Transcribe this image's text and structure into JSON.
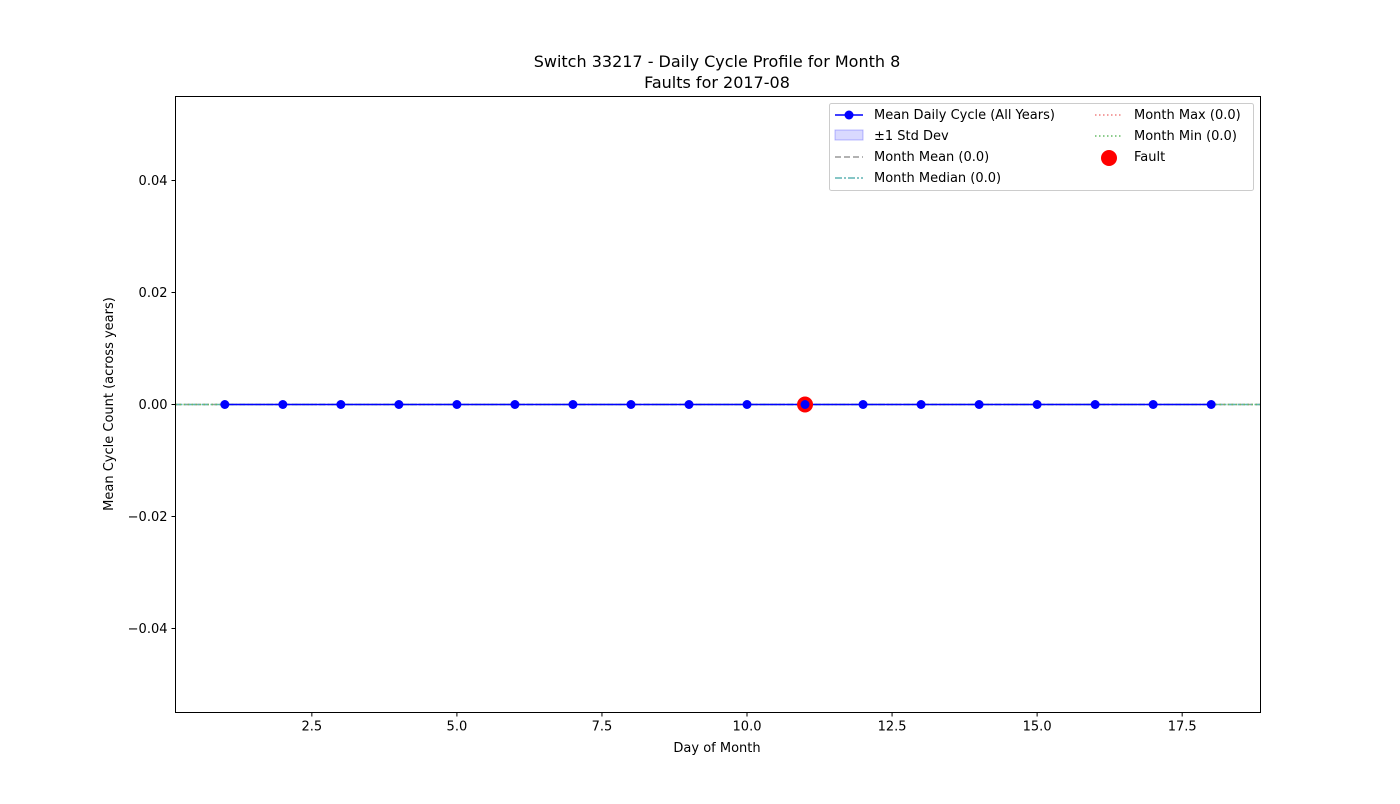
{
  "chart_data": {
    "type": "line",
    "title": "Switch 33217 - Daily Cycle Profile for Month 8",
    "subtitle": "Faults for 2017-08",
    "xlabel": "Day of Month",
    "ylabel": "Mean Cycle Count (across years)",
    "xlim": [
      0.15,
      18.85
    ],
    "ylim": [
      -0.055,
      0.055
    ],
    "xticks": [
      2.5,
      5.0,
      7.5,
      10.0,
      12.5,
      15.0,
      17.5
    ],
    "xtick_labels": [
      "2.5",
      "5.0",
      "7.5",
      "10.0",
      "12.5",
      "15.0",
      "17.5"
    ],
    "yticks": [
      -0.04,
      -0.02,
      0.0,
      0.02,
      0.04
    ],
    "ytick_labels": [
      "−0.04",
      "−0.02",
      "0.00",
      "0.02",
      "0.04"
    ],
    "grid": false,
    "legend_position": "top-right",
    "x": [
      1,
      2,
      3,
      4,
      5,
      6,
      7,
      8,
      9,
      10,
      11,
      12,
      13,
      14,
      15,
      16,
      17,
      18
    ],
    "series": [
      {
        "name": "Mean Daily Cycle (All Years)",
        "values": [
          0,
          0,
          0,
          0,
          0,
          0,
          0,
          0,
          0,
          0,
          0,
          0,
          0,
          0,
          0,
          0,
          0,
          0
        ],
        "color": "#0000ff"
      }
    ],
    "std_band": {
      "name": "±1 Std Dev",
      "lower": 0,
      "upper": 0,
      "color": "#ccccff"
    },
    "reference_lines": [
      {
        "name": "Month Mean (0.0)",
        "value": 0.0,
        "color": "#999999",
        "style": "dashed"
      },
      {
        "name": "Month Median (0.0)",
        "value": 0.0,
        "color": "#5fb3b3",
        "style": "dashdot"
      },
      {
        "name": "Month Max (0.0)",
        "value": 0.0,
        "color": "#f08080",
        "style": "dotted"
      },
      {
        "name": "Month Min (0.0)",
        "value": 0.0,
        "color": "#66bb66",
        "style": "dotted"
      }
    ],
    "faults": {
      "name": "Fault",
      "x": [
        11
      ],
      "y": [
        0
      ],
      "color": "#ff0000"
    },
    "legend_entries": [
      "Mean Daily Cycle (All Years)",
      "±1 Std Dev",
      "Month Mean (0.0)",
      "Month Median (0.0)",
      "Month Max (0.0)",
      "Month Min (0.0)",
      "Fault"
    ]
  }
}
